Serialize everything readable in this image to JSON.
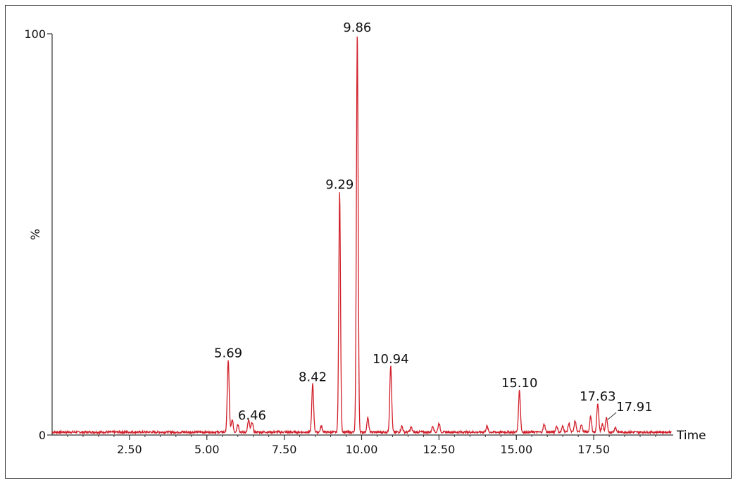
{
  "chart_data": {
    "type": "line",
    "title": "",
    "xlabel": "Time",
    "ylabel": "%",
    "xlim": [
      0,
      20
    ],
    "ylim": [
      0,
      100
    ],
    "grid": false,
    "x_ticks": [
      2.5,
      5.0,
      7.5,
      10.0,
      12.5,
      15.0,
      17.5
    ],
    "x_tick_labels": [
      "2.50",
      "5.00",
      "7.50",
      "10.00",
      "12.50",
      "15.00",
      "17.50"
    ],
    "y_ticks": [
      0,
      100
    ],
    "y_tick_labels": [
      "0",
      "100"
    ],
    "line_color": "#d11f2a",
    "series": [
      {
        "peaks": [
          {
            "x": 5.69,
            "y": 18
          },
          {
            "x": 5.82,
            "y": 3
          },
          {
            "x": 6.0,
            "y": 2
          },
          {
            "x": 6.35,
            "y": 3
          },
          {
            "x": 6.46,
            "y": 2.5
          },
          {
            "x": 8.42,
            "y": 12
          },
          {
            "x": 8.7,
            "y": 1.5
          },
          {
            "x": 9.29,
            "y": 60
          },
          {
            "x": 9.86,
            "y": 100
          },
          {
            "x": 10.2,
            "y": 3.5
          },
          {
            "x": 10.94,
            "y": 16.5
          },
          {
            "x": 11.3,
            "y": 1.5
          },
          {
            "x": 11.6,
            "y": 1.2
          },
          {
            "x": 12.3,
            "y": 1.5
          },
          {
            "x": 12.5,
            "y": 2.2
          },
          {
            "x": 14.05,
            "y": 1.5
          },
          {
            "x": 15.1,
            "y": 10.5
          },
          {
            "x": 15.9,
            "y": 2
          },
          {
            "x": 16.3,
            "y": 1.5
          },
          {
            "x": 16.5,
            "y": 1.5
          },
          {
            "x": 16.7,
            "y": 2.2
          },
          {
            "x": 16.9,
            "y": 2.8
          },
          {
            "x": 17.1,
            "y": 2.0
          },
          {
            "x": 17.4,
            "y": 3.8
          },
          {
            "x": 17.63,
            "y": 7.2
          },
          {
            "x": 17.78,
            "y": 2.0
          },
          {
            "x": 17.91,
            "y": 3.5
          },
          {
            "x": 18.2,
            "y": 1.2
          }
        ]
      }
    ],
    "annotations": [
      {
        "text": "5.69",
        "x": 5.69,
        "y": 18
      },
      {
        "text": "6.46",
        "x": 6.46,
        "y": 2.5
      },
      {
        "text": "8.42",
        "x": 8.42,
        "y": 12
      },
      {
        "text": "9.29",
        "x": 9.29,
        "y": 60
      },
      {
        "text": "9.86",
        "x": 9.86,
        "y": 100
      },
      {
        "text": "10.94",
        "x": 10.94,
        "y": 16.5
      },
      {
        "text": "15.10",
        "x": 15.1,
        "y": 10.5
      },
      {
        "text": "17.63",
        "x": 17.63,
        "y": 7.2
      },
      {
        "text": "17.91",
        "x": 17.91,
        "y": 3.5
      }
    ]
  }
}
